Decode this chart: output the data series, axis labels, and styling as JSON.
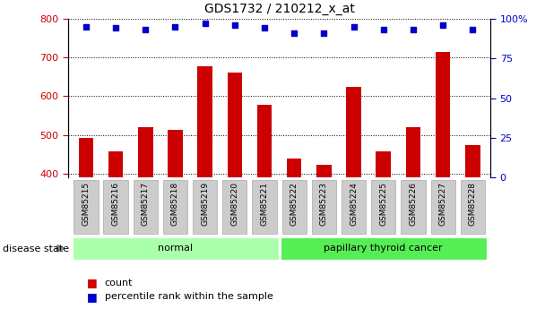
{
  "title": "GDS1732 / 210212_x_at",
  "samples": [
    "GSM85215",
    "GSM85216",
    "GSM85217",
    "GSM85218",
    "GSM85219",
    "GSM85220",
    "GSM85221",
    "GSM85222",
    "GSM85223",
    "GSM85224",
    "GSM85225",
    "GSM85226",
    "GSM85227",
    "GSM85228"
  ],
  "counts": [
    492,
    457,
    520,
    514,
    678,
    660,
    577,
    439,
    424,
    625,
    458,
    519,
    714,
    475
  ],
  "percentiles": [
    95,
    94,
    93,
    95,
    97,
    96,
    94,
    91,
    91,
    95,
    93,
    93,
    96,
    93
  ],
  "ylim_left": [
    390,
    800
  ],
  "ylim_right": [
    0,
    100
  ],
  "yticks_left": [
    400,
    500,
    600,
    700,
    800
  ],
  "yticks_right": [
    0,
    25,
    50,
    75,
    100
  ],
  "groups": [
    {
      "label": "normal",
      "start": 0,
      "end": 7,
      "color": "#aaffaa"
    },
    {
      "label": "papillary thyroid cancer",
      "start": 7,
      "end": 14,
      "color": "#55ee55"
    }
  ],
  "disease_state_label": "disease state",
  "legend_count_label": "count",
  "legend_percentile_label": "percentile rank within the sample",
  "bar_color": "#cc0000",
  "dot_color": "#0000cc",
  "bar_width": 0.5,
  "grid_color": "#000000",
  "tick_label_color_left": "#cc0000",
  "tick_label_color_right": "#0000cc",
  "background_color": "#ffffff",
  "plot_bg_color": "#ffffff",
  "label_box_color": "#cccccc",
  "label_box_edge_color": "#aaaaaa"
}
